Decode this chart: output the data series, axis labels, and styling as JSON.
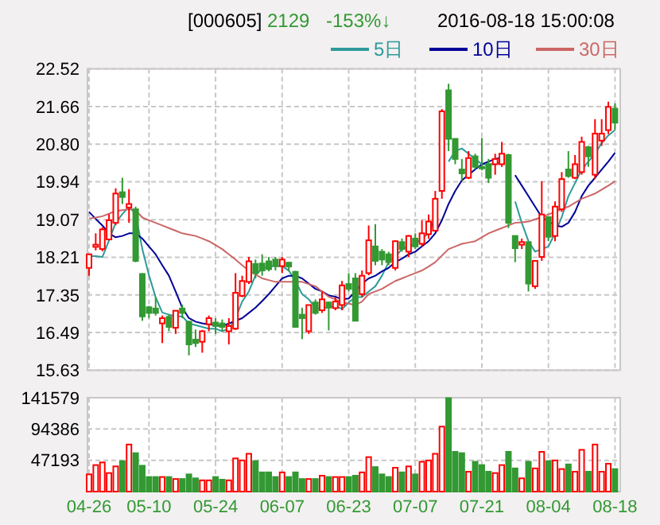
{
  "chart_data": [
    {
      "type": "candlestick",
      "annotations": [
        "[000605]",
        "2129",
        "-153%↓",
        "2016-08-18 15:00:08"
      ],
      "tick_labels": "y",
      "grid": true,
      "legend": "top right",
      "ylim": [
        15.63,
        22.52
      ],
      "yticks": [
        {
          "value": 15.63,
          "label": "15.63"
        },
        {
          "value": 16.49,
          "label": "16.49"
        },
        {
          "value": 17.35,
          "label": "17.35"
        },
        {
          "value": 18.21,
          "label": "18.21"
        },
        {
          "value": 19.07,
          "label": "19.07"
        },
        {
          "value": 19.94,
          "label": "19.94"
        },
        {
          "value": 20.8,
          "label": "20.80"
        },
        {
          "value": 21.66,
          "label": "21.66"
        },
        {
          "value": 22.52,
          "label": "22.52"
        }
      ],
      "ohlc": [
        [
          17.97,
          18.28,
          17.79,
          18.28
        ],
        [
          18.45,
          18.76,
          18.37,
          18.5
        ],
        [
          18.4,
          18.9,
          18.35,
          18.85
        ],
        [
          18.62,
          19.2,
          18.6,
          19.06
        ],
        [
          19.0,
          19.79,
          18.95,
          19.67
        ],
        [
          19.7,
          20.03,
          19.43,
          19.59
        ],
        [
          19.35,
          19.77,
          19.0,
          19.43
        ],
        [
          19.31,
          19.37,
          18.1,
          18.13
        ],
        [
          17.83,
          17.85,
          16.76,
          16.86
        ],
        [
          17.07,
          17.1,
          16.82,
          16.94
        ],
        [
          17.04,
          17.3,
          16.88,
          16.94
        ],
        [
          16.7,
          16.88,
          16.25,
          16.82
        ],
        [
          16.85,
          16.9,
          16.52,
          16.62
        ],
        [
          16.6,
          17.0,
          16.46,
          16.99
        ],
        [
          17.04,
          17.13,
          16.82,
          16.94
        ],
        [
          16.74,
          16.76,
          15.97,
          16.22
        ],
        [
          16.33,
          16.56,
          16.16,
          16.25
        ],
        [
          16.28,
          16.55,
          16.03,
          16.52
        ],
        [
          16.68,
          16.88,
          16.52,
          16.82
        ],
        [
          16.72,
          16.82,
          16.46,
          16.64
        ],
        [
          16.7,
          16.79,
          16.52,
          16.62
        ],
        [
          16.52,
          16.82,
          16.22,
          16.64
        ],
        [
          16.58,
          17.85,
          16.55,
          17.4
        ],
        [
          17.33,
          17.79,
          17.3,
          17.67
        ],
        [
          17.65,
          18.22,
          17.6,
          18.12
        ],
        [
          18.06,
          18.16,
          17.73,
          17.85
        ],
        [
          18.07,
          18.28,
          17.79,
          17.91
        ],
        [
          18.12,
          18.22,
          17.89,
          17.94
        ],
        [
          18.16,
          18.22,
          17.91,
          18.01
        ],
        [
          18.01,
          18.22,
          17.85,
          18.16
        ],
        [
          18.09,
          18.1,
          17.89,
          18.0
        ],
        [
          17.88,
          17.9,
          16.6,
          16.62
        ],
        [
          16.9,
          17.06,
          16.34,
          16.82
        ],
        [
          16.52,
          17.12,
          16.46,
          17.12
        ],
        [
          17.18,
          17.25,
          16.9,
          16.94
        ],
        [
          17.0,
          17.43,
          16.94,
          17.25
        ],
        [
          17.18,
          17.2,
          16.54,
          17.06
        ],
        [
          17.05,
          17.3,
          17.0,
          17.2
        ],
        [
          17.12,
          17.67,
          17.0,
          17.57
        ],
        [
          17.6,
          17.85,
          17.43,
          17.49
        ],
        [
          17.73,
          17.85,
          16.76,
          16.76
        ],
        [
          17.37,
          17.91,
          17.31,
          17.79
        ],
        [
          17.85,
          18.94,
          17.8,
          18.6
        ],
        [
          18.46,
          18.97,
          18.03,
          18.13
        ],
        [
          18.34,
          18.4,
          18.03,
          18.16
        ],
        [
          18.28,
          18.34,
          18.03,
          18.1
        ],
        [
          17.97,
          18.6,
          17.91,
          18.58
        ],
        [
          18.56,
          18.64,
          18.34,
          18.4
        ],
        [
          18.34,
          18.72,
          18.22,
          18.7
        ],
        [
          18.64,
          18.76,
          18.4,
          18.46
        ],
        [
          18.52,
          19.06,
          18.46,
          18.76
        ],
        [
          18.74,
          19.19,
          18.64,
          19.03
        ],
        [
          18.82,
          19.73,
          18.8,
          19.55
        ],
        [
          19.73,
          21.6,
          19.55,
          21.55
        ],
        [
          22.03,
          22.18,
          20.64,
          20.92
        ],
        [
          20.92,
          20.92,
          20.34,
          20.46
        ],
        [
          20.22,
          20.46,
          19.97,
          20.13
        ],
        [
          20.03,
          20.64,
          20.0,
          20.48
        ],
        [
          20.52,
          20.58,
          20.22,
          20.28
        ],
        [
          20.28,
          20.94,
          20.2,
          20.25
        ],
        [
          20.34,
          20.46,
          19.91,
          20.03
        ],
        [
          20.34,
          20.58,
          20.1,
          20.46
        ],
        [
          20.34,
          20.85,
          20.28,
          20.58
        ],
        [
          20.55,
          20.58,
          18.88,
          19.0
        ],
        [
          18.7,
          18.7,
          18.1,
          18.42
        ],
        [
          18.5,
          18.64,
          18.4,
          18.56
        ],
        [
          18.56,
          18.56,
          17.43,
          17.61
        ],
        [
          17.55,
          18.13,
          17.49,
          18.13
        ],
        [
          18.22,
          19.95,
          18.13,
          19.19
        ],
        [
          19.13,
          19.13,
          18.58,
          18.68
        ],
        [
          18.7,
          19.49,
          18.58,
          19.37
        ],
        [
          19.31,
          20.16,
          19.25,
          20.0
        ],
        [
          20.22,
          20.64,
          20.03,
          20.07
        ],
        [
          20.03,
          20.55,
          20.0,
          20.34
        ],
        [
          20.16,
          20.97,
          20.1,
          20.85
        ],
        [
          20.73,
          20.76,
          20.28,
          20.52
        ],
        [
          20.1,
          21.37,
          20.0,
          21.04
        ],
        [
          20.88,
          21.37,
          20.76,
          21.04
        ],
        [
          21.12,
          21.77,
          21.03,
          21.65
        ],
        [
          21.61,
          21.73,
          21.12,
          21.29
        ]
      ],
      "series": [
        {
          "type": "line",
          "name": "5日",
          "color": "#2e9a9a",
          "values": [
            18.24,
            18.24,
            18.22,
            18.6,
            19.0,
            19.2,
            19.37,
            19.2,
            18.4,
            17.8,
            17.3,
            16.95,
            16.9,
            16.86,
            16.86,
            16.7,
            16.66,
            16.62,
            16.58,
            16.58,
            16.52,
            16.58,
            16.82,
            17.2,
            17.43,
            17.8,
            17.95,
            18.01,
            18.01,
            18.01,
            17.91,
            17.67,
            17.37,
            17.25,
            17.06,
            17.03,
            17.08,
            17.1,
            17.03,
            17.18,
            17.3,
            17.3,
            17.43,
            17.55,
            17.79,
            18.1,
            18.22,
            18.4,
            18.46,
            18.52,
            18.64,
            18.76,
            19.13,
            null,
            20.4,
            20.64,
            20.7,
            20.58,
            20.46,
            20.34,
            20.34,
            20.34,
            20.4,
            null,
            19.49,
            19.0,
            18.58,
            18.34,
            18.4,
            18.46,
            18.76,
            19.13,
            19.61,
            19.91,
            20.22,
            20.4,
            20.58,
            20.82,
            21.0,
            21.12
          ]
        },
        {
          "type": "line",
          "name": "10日",
          "color": "#000099",
          "values": [
            19.25,
            19.09,
            18.94,
            18.76,
            18.67,
            18.7,
            18.76,
            18.76,
            18.64,
            18.46,
            18.28,
            18.03,
            17.79,
            17.43,
            17.06,
            16.82,
            16.74,
            16.7,
            16.68,
            16.66,
            16.64,
            16.7,
            16.76,
            16.82,
            16.94,
            17.06,
            17.21,
            17.37,
            17.55,
            17.73,
            17.79,
            17.79,
            17.73,
            17.61,
            17.49,
            17.43,
            17.34,
            17.31,
            17.25,
            17.27,
            17.43,
            17.61,
            17.73,
            17.79,
            17.89,
            17.97,
            18.1,
            18.18,
            18.28,
            18.34,
            18.46,
            18.58,
            18.76,
            19.06,
            19.43,
            19.73,
            19.97,
            20.1,
            20.22,
            20.34,
            20.4,
            20.46,
            20.49,
            null,
            20.09,
            19.85,
            19.61,
            19.37,
            19.13,
            19.03,
            18.94,
            18.91,
            19.0,
            19.25,
            19.61,
            19.85,
            20.03,
            20.22,
            20.4,
            20.6
          ]
        },
        {
          "type": "line",
          "name": "30日",
          "color": "#cc6666",
          "values": [
            19.1,
            19.12,
            19.15,
            19.21,
            19.27,
            19.29,
            19.31,
            19.29,
            19.12,
            19.06,
            19.0,
            18.94,
            18.88,
            18.82,
            18.76,
            18.73,
            18.7,
            18.64,
            18.58,
            18.49,
            18.4,
            18.28,
            18.16,
            18.03,
            17.91,
            17.82,
            17.73,
            17.69,
            17.65,
            17.65,
            17.65,
            17.65,
            17.65,
            17.6,
            17.55,
            17.43,
            17.31,
            17.25,
            17.18,
            17.15,
            17.12,
            17.2,
            17.37,
            17.43,
            17.49,
            17.58,
            17.67,
            17.73,
            17.79,
            17.85,
            17.91,
            18.0,
            18.1,
            18.25,
            18.4,
            18.46,
            18.52,
            18.55,
            18.58,
            18.67,
            18.76,
            18.82,
            18.88,
            18.94,
            19.0,
            19.01,
            19.03,
            19.08,
            19.13,
            19.19,
            19.25,
            19.31,
            19.37,
            19.46,
            19.55,
            19.61,
            19.67,
            19.76,
            19.85,
            19.95
          ]
        }
      ]
    },
    {
      "type": "bar",
      "grid": true,
      "categories": [
        "04-26",
        null,
        null,
        null,
        null,
        null,
        null,
        null,
        null,
        "05-10",
        null,
        null,
        null,
        null,
        null,
        null,
        null,
        null,
        null,
        "05-24",
        null,
        null,
        null,
        null,
        null,
        null,
        null,
        null,
        null,
        "06-07",
        null,
        null,
        null,
        null,
        null,
        null,
        null,
        null,
        null,
        "06-23",
        null,
        null,
        null,
        null,
        null,
        null,
        null,
        null,
        null,
        "07-07",
        null,
        null,
        null,
        null,
        null,
        null,
        null,
        null,
        null,
        "07-21",
        null,
        null,
        null,
        null,
        null,
        null,
        null,
        null,
        null,
        "08-04",
        null,
        null,
        null,
        null,
        null,
        null,
        null,
        null,
        null,
        "08-18"
      ],
      "ylim": [
        0,
        141579
      ],
      "yticks": [
        47193,
        94386,
        141579
      ],
      "values": [
        26000,
        40000,
        44000,
        28000,
        38000,
        46000,
        71000,
        58000,
        39000,
        22000,
        22000,
        22000,
        22000,
        19000,
        19000,
        26000,
        20000,
        17000,
        17000,
        22000,
        18000,
        17000,
        50000,
        47000,
        57000,
        46000,
        29000,
        29000,
        22000,
        29000,
        22000,
        29000,
        19000,
        19000,
        19000,
        24000,
        22000,
        22000,
        22000,
        22000,
        24000,
        29000,
        52000,
        37000,
        26000,
        22000,
        36000,
        29000,
        38000,
        26000,
        45000,
        47000,
        57000,
        98000,
        141000,
        60000,
        58000,
        30000,
        45000,
        40000,
        30000,
        28000,
        40000,
        60000,
        35000,
        20000,
        45000,
        35000,
        60000,
        46000,
        47000,
        34000,
        41000,
        30000,
        63000,
        30000,
        71000,
        30000,
        42000,
        34000
      ],
      "colors": [
        "#ff0000",
        "#ff0000",
        "#ff0000",
        "#ff0000",
        "#ff0000",
        "#339933",
        "#ff0000",
        "#339933",
        "#339933",
        "#339933",
        "#339933",
        "#ff0000",
        "#339933",
        "#ff0000",
        "#339933",
        "#339933",
        "#339933",
        "#ff0000",
        "#ff0000",
        "#339933",
        "#339933",
        "#ff0000",
        "#ff0000",
        "#ff0000",
        "#ff0000",
        "#339933",
        "#339933",
        "#339933",
        "#339933",
        "#ff0000",
        "#339933",
        "#339933",
        "#339933",
        "#ff0000",
        "#339933",
        "#ff0000",
        "#339933",
        "#ff0000",
        "#ff0000",
        "#339933",
        "#339933",
        "#ff0000",
        "#ff0000",
        "#339933",
        "#339933",
        "#339933",
        "#ff0000",
        "#339933",
        "#ff0000",
        "#339933",
        "#ff0000",
        "#ff0000",
        "#ff0000",
        "#ff0000",
        "#339933",
        "#339933",
        "#339933",
        "#ff0000",
        "#339933",
        "#339933",
        "#339933",
        "#ff0000",
        "#ff0000",
        "#339933",
        "#339933",
        "#ff0000",
        "#339933",
        "#ff0000",
        "#ff0000",
        "#339933",
        "#ff0000",
        "#ff0000",
        "#339933",
        "#ff0000",
        "#ff0000",
        "#339933",
        "#ff0000",
        "#ff0000",
        "#ff0000",
        "#339933"
      ]
    }
  ]
}
